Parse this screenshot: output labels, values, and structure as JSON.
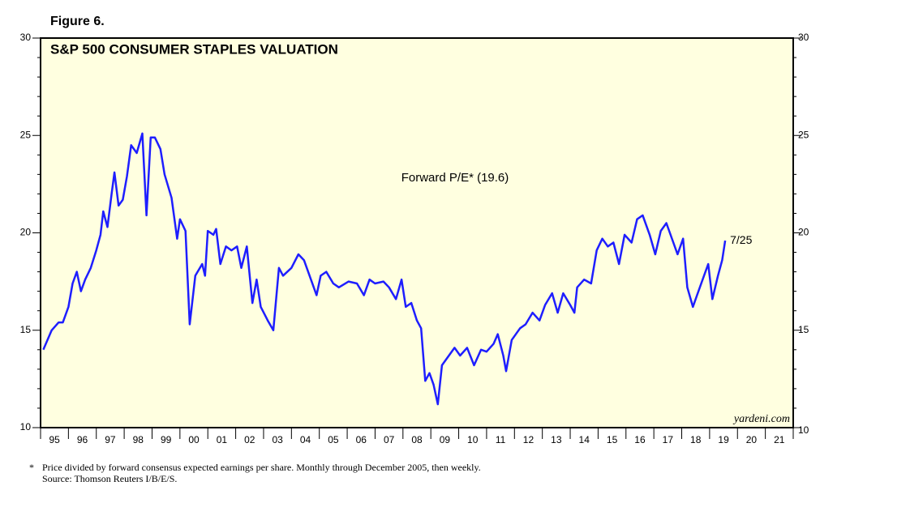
{
  "chart_data": {
    "type": "line",
    "figure_label": "Figure 6.",
    "title": "S&P 500 CONSUMER STAPLES VALUATION",
    "annotation": "Forward P/E* (19.6)",
    "end_label": "7/25",
    "source_brand": "yardeni.com",
    "footnote_marker": "*",
    "footnote": "Price divided by forward consensus expected earnings per share. Monthly through December 2005, then weekly.",
    "source": "Source: Thomson Reuters I/B/E/S.",
    "xlim": [
      1995,
      2022
    ],
    "xticks": [
      {
        "value": 1995.5,
        "label": "95"
      },
      {
        "value": 1996.5,
        "label": "96"
      },
      {
        "value": 1997.5,
        "label": "97"
      },
      {
        "value": 1998.5,
        "label": "98"
      },
      {
        "value": 1999.5,
        "label": "99"
      },
      {
        "value": 2000.5,
        "label": "00"
      },
      {
        "value": 2001.5,
        "label": "01"
      },
      {
        "value": 2002.5,
        "label": "02"
      },
      {
        "value": 2003.5,
        "label": "03"
      },
      {
        "value": 2004.5,
        "label": "04"
      },
      {
        "value": 2005.5,
        "label": "05"
      },
      {
        "value": 2006.5,
        "label": "06"
      },
      {
        "value": 2007.5,
        "label": "07"
      },
      {
        "value": 2008.5,
        "label": "08"
      },
      {
        "value": 2009.5,
        "label": "09"
      },
      {
        "value": 2010.5,
        "label": "10"
      },
      {
        "value": 2011.5,
        "label": "11"
      },
      {
        "value": 2012.5,
        "label": "12"
      },
      {
        "value": 2013.5,
        "label": "13"
      },
      {
        "value": 2014.5,
        "label": "14"
      },
      {
        "value": 2015.5,
        "label": "15"
      },
      {
        "value": 2016.5,
        "label": "16"
      },
      {
        "value": 2017.5,
        "label": "17"
      },
      {
        "value": 2018.5,
        "label": "18"
      },
      {
        "value": 2019.5,
        "label": "19"
      },
      {
        "value": 2020.5,
        "label": "20"
      },
      {
        "value": 2021.5,
        "label": "21"
      }
    ],
    "ylim": [
      10,
      30
    ],
    "yticks": [
      10,
      15,
      20,
      25,
      30
    ],
    "x": [
      1995.1,
      1995.4,
      1995.65,
      1995.8,
      1996.0,
      1996.15,
      1996.3,
      1996.45,
      1996.6,
      1996.8,
      1997.0,
      1997.15,
      1997.25,
      1997.4,
      1997.55,
      1997.65,
      1997.8,
      1997.95,
      1998.1,
      1998.25,
      1998.45,
      1998.65,
      1998.8,
      1998.95,
      1999.1,
      1999.3,
      1999.45,
      1999.7,
      1999.9,
      2000.0,
      2000.2,
      2000.35,
      2000.55,
      2000.8,
      2000.9,
      2001.0,
      2001.2,
      2001.3,
      2001.45,
      2001.65,
      2001.85,
      2002.05,
      2002.2,
      2002.4,
      2002.6,
      2002.75,
      2002.9,
      2003.15,
      2003.35,
      2003.55,
      2003.7,
      2004.0,
      2004.25,
      2004.45,
      2004.7,
      2004.9,
      2005.05,
      2005.25,
      2005.5,
      2005.7,
      2006.05,
      2006.35,
      2006.6,
      2006.8,
      2007.0,
      2007.3,
      2007.5,
      2007.75,
      2007.95,
      2008.1,
      2008.3,
      2008.5,
      2008.65,
      2008.8,
      2008.95,
      2009.1,
      2009.25,
      2009.4,
      2009.65,
      2009.85,
      2010.05,
      2010.3,
      2010.55,
      2010.8,
      2011.0,
      2011.25,
      2011.4,
      2011.6,
      2011.7,
      2011.9,
      2012.2,
      2012.4,
      2012.65,
      2012.9,
      2013.1,
      2013.35,
      2013.55,
      2013.75,
      2014.0,
      2014.15,
      2014.25,
      2014.5,
      2014.75,
      2014.95,
      2015.15,
      2015.35,
      2015.55,
      2015.75,
      2015.95,
      2016.2,
      2016.4,
      2016.6,
      2016.85,
      2017.05,
      2017.25,
      2017.45,
      2017.7,
      2017.85,
      2018.05,
      2018.2,
      2018.4,
      2018.55,
      2018.75,
      2018.95,
      2019.1,
      2019.3,
      2019.45,
      2019.56
    ],
    "series": [
      {
        "name": "Forward P/E",
        "color": "#1e1eff",
        "values": [
          14.0,
          15.0,
          15.4,
          15.4,
          16.2,
          17.4,
          18.0,
          17.0,
          17.6,
          18.2,
          19.1,
          19.9,
          21.1,
          20.3,
          22.0,
          23.1,
          21.4,
          21.7,
          22.9,
          24.5,
          24.1,
          25.1,
          20.9,
          24.9,
          24.9,
          24.3,
          23.0,
          21.8,
          19.7,
          20.7,
          20.1,
          15.3,
          17.8,
          18.4,
          17.8,
          20.1,
          19.9,
          20.2,
          18.4,
          19.3,
          19.1,
          19.3,
          18.2,
          19.3,
          16.4,
          17.6,
          16.2,
          15.5,
          15.0,
          18.2,
          17.8,
          18.2,
          18.9,
          18.6,
          17.6,
          16.8,
          17.8,
          18.0,
          17.4,
          17.2,
          17.5,
          17.4,
          16.8,
          17.6,
          17.4,
          17.5,
          17.2,
          16.6,
          17.6,
          16.2,
          16.4,
          15.5,
          15.1,
          12.4,
          12.8,
          12.2,
          11.2,
          13.2,
          13.7,
          14.1,
          13.7,
          14.1,
          13.2,
          14.0,
          13.9,
          14.3,
          14.8,
          13.7,
          12.9,
          14.5,
          15.1,
          15.3,
          15.9,
          15.5,
          16.3,
          16.9,
          15.9,
          16.9,
          16.3,
          15.9,
          17.2,
          17.6,
          17.4,
          19.1,
          19.7,
          19.3,
          19.5,
          18.4,
          19.9,
          19.5,
          20.7,
          20.9,
          19.9,
          18.9,
          20.1,
          20.5,
          19.5,
          18.9,
          19.7,
          17.2,
          16.2,
          16.8,
          17.6,
          18.4,
          16.6,
          17.8,
          18.6,
          19.6
        ]
      }
    ]
  }
}
